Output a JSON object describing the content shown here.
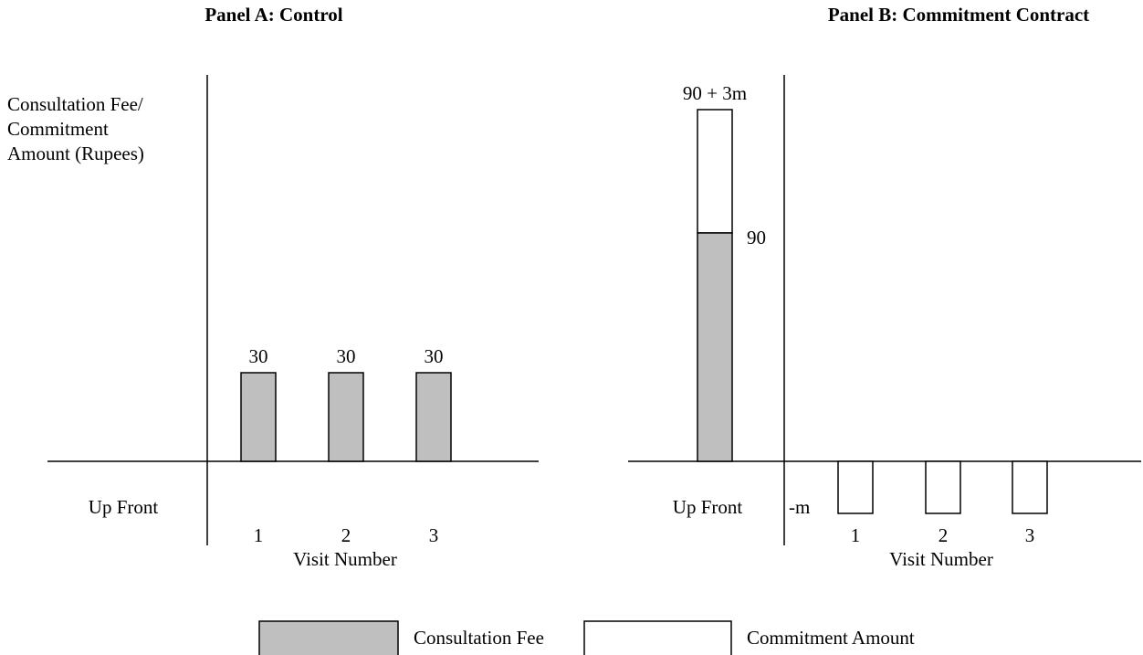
{
  "panel_a": {
    "title": "Panel A: Control",
    "y_axis_label": [
      "Consultation Fee/",
      "Commitment",
      "Amount (Rupees)"
    ],
    "up_front_label": "Up Front",
    "visits": [
      "1",
      "2",
      "3"
    ],
    "bar_labels": [
      "30",
      "30",
      "30"
    ],
    "x_axis_label": "Visit Number"
  },
  "panel_b": {
    "title": "Panel B: Commitment Contract",
    "top_label": "90 + 3m",
    "fee_label": "90",
    "up_front_label": "Up Front",
    "negative_label": "-m",
    "visits": [
      "1",
      "2",
      "3"
    ],
    "x_axis_label": "Visit Number"
  },
  "legend": [
    "Consultation Fee",
    "Commitment Amount"
  ]
}
